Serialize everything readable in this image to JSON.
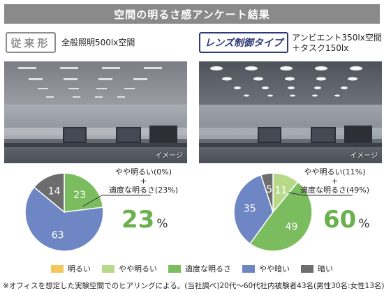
{
  "title": "空間の明るさ感アンケート結果",
  "left_panel": {
    "badge": "従来形",
    "condition": "全般照明500lx空間",
    "image_label": "イメージ",
    "annotation_line1": "やや明るい(0%)",
    "annotation_plus": "+",
    "annotation_line2": "適度な明るさ(23%)",
    "big_value": "23",
    "big_unit": "%"
  },
  "right_panel": {
    "badge": "レンズ制御タイプ",
    "condition_line1": "アンビエント350lx空間",
    "condition_line2": "＋タスク150lx",
    "image_label": "イメージ",
    "annotation_line1": "やや明るい(11%)",
    "annotation_plus": "+",
    "annotation_line2": "適度な明るさ(49%)",
    "big_value": "60",
    "big_unit": "%"
  },
  "legend": [
    {
      "label": "明るい",
      "color": "#f2c75c"
    },
    {
      "label": "やや明るい",
      "color": "#b8d98a"
    },
    {
      "label": "適度な明るさ",
      "color": "#7bbd5e"
    },
    {
      "label": "やや暗い",
      "color": "#6e86c4"
    },
    {
      "label": "暗い",
      "color": "#6d6d6d"
    }
  ],
  "footnote": "※オフィスを想定した実験空間でのヒアリングによる。(当社調べ)20代〜60代社内被験者43名(男性30名:女性13名)",
  "chart_data": [
    {
      "type": "pie",
      "categories": [
        "明るい",
        "やや明るい",
        "適度な明るさ",
        "やや暗い",
        "暗い"
      ],
      "values": [
        0,
        0,
        23,
        63,
        14
      ],
      "colors": [
        "#f2c75c",
        "#b8d98a",
        "#7bbd5e",
        "#6e86c4",
        "#6d6d6d"
      ],
      "labels": [
        "",
        "",
        "23",
        "63",
        "14"
      ]
    },
    {
      "type": "pie",
      "categories": [
        "明るい",
        "やや明るい",
        "適度な明るさ",
        "やや暗い",
        "暗い"
      ],
      "values": [
        0,
        11,
        49,
        35,
        5
      ],
      "colors": [
        "#f2c75c",
        "#b8d98a",
        "#7bbd5e",
        "#6e86c4",
        "#6d6d6d"
      ],
      "labels": [
        "",
        "11",
        "49",
        "35",
        "5"
      ]
    }
  ]
}
